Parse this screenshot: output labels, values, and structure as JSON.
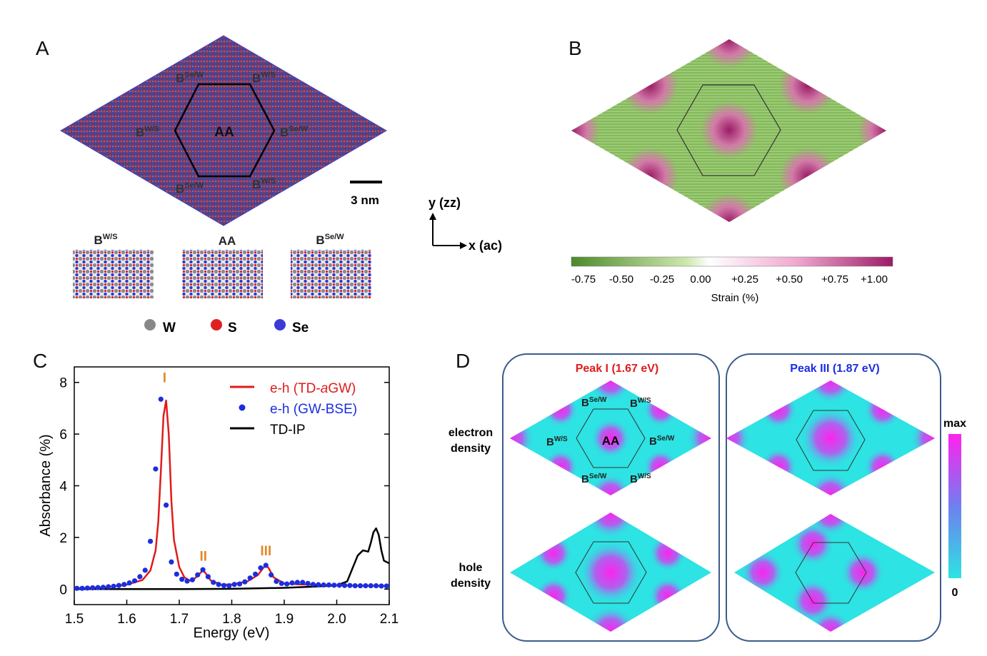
{
  "panels": {
    "a": "A",
    "b": "B",
    "c": "C",
    "d": "D"
  },
  "panel_a": {
    "center_label": "AA",
    "site_base": "B",
    "sup_ws": "W/S",
    "sup_sew": "Se/W",
    "scale_bar": "3 nm",
    "inset_labels": [
      "W/S",
      "AA",
      "Se/W"
    ],
    "legend": [
      {
        "symbol": "W",
        "color": "#888888"
      },
      {
        "symbol": "S",
        "color": "#e02020"
      },
      {
        "symbol": "Se",
        "color": "#3b3bd6"
      }
    ]
  },
  "axes_indicator": {
    "y": "y (zz)",
    "x": "x (ac)"
  },
  "panel_b": {
    "colorbar_ticks": [
      "-0.75",
      "-0.50",
      "-0.25",
      "0.00",
      "+0.25",
      "+0.50",
      "+0.75",
      "+1.00"
    ],
    "colorbar_label": "Strain (%)",
    "colors": {
      "neg": "#4c8a2a",
      "zero": "#ffffff",
      "pos": "#9b1c66"
    }
  },
  "chart_data": {
    "type": "line",
    "xlabel": "Energy (eV)",
    "ylabel": "Absorbance (%)",
    "xlim": [
      1.5,
      2.1
    ],
    "ylim": [
      -0.6,
      8.6
    ],
    "xticks": [
      "1.5",
      "1.6",
      "1.7",
      "1.8",
      "1.9",
      "2.0",
      "2.1"
    ],
    "yticks": [
      "0",
      "2",
      "4",
      "6",
      "8"
    ],
    "legend_position": "top-right",
    "series": [
      {
        "name": "e-h (TD-aGW)",
        "color": "#e01b1b",
        "style": "line",
        "x": [
          1.5,
          1.56,
          1.6,
          1.63,
          1.645,
          1.655,
          1.66,
          1.665,
          1.67,
          1.675,
          1.68,
          1.685,
          1.69,
          1.7,
          1.71,
          1.72,
          1.73,
          1.74,
          1.745,
          1.75,
          1.76,
          1.78,
          1.8,
          1.83,
          1.85,
          1.86,
          1.865,
          1.87,
          1.88,
          1.9,
          1.93,
          1.96,
          2.0,
          2.05,
          2.1
        ],
        "y": [
          0.03,
          0.07,
          0.17,
          0.35,
          0.72,
          1.5,
          2.6,
          4.6,
          6.7,
          7.3,
          6.0,
          3.4,
          1.9,
          0.85,
          0.45,
          0.33,
          0.42,
          0.62,
          0.72,
          0.62,
          0.33,
          0.17,
          0.18,
          0.3,
          0.55,
          0.82,
          0.92,
          0.82,
          0.45,
          0.22,
          0.18,
          0.17,
          0.15,
          0.13,
          0.12
        ]
      },
      {
        "name": "e-h (GW-BSE)",
        "color": "#1b2ee0",
        "style": "dots",
        "x": [
          1.505,
          1.515,
          1.525,
          1.535,
          1.545,
          1.555,
          1.565,
          1.575,
          1.585,
          1.595,
          1.605,
          1.615,
          1.625,
          1.635,
          1.645,
          1.655,
          1.665,
          1.675,
          1.685,
          1.695,
          1.705,
          1.715,
          1.725,
          1.735,
          1.745,
          1.755,
          1.765,
          1.775,
          1.785,
          1.795,
          1.805,
          1.815,
          1.825,
          1.835,
          1.845,
          1.855,
          1.865,
          1.875,
          1.885,
          1.895,
          1.905,
          1.915,
          1.925,
          1.935,
          1.945,
          1.955,
          1.965,
          1.975,
          1.985,
          1.995,
          2.005,
          2.015,
          2.025,
          2.035,
          2.045,
          2.055,
          2.065,
          2.075,
          2.085,
          2.095
        ],
        "y": [
          0.03,
          0.03,
          0.04,
          0.05,
          0.06,
          0.07,
          0.09,
          0.11,
          0.14,
          0.18,
          0.24,
          0.32,
          0.48,
          0.73,
          1.85,
          4.65,
          7.35,
          3.25,
          1.05,
          0.58,
          0.38,
          0.31,
          0.36,
          0.55,
          0.75,
          0.48,
          0.26,
          0.18,
          0.14,
          0.13,
          0.18,
          0.2,
          0.28,
          0.43,
          0.58,
          0.82,
          0.92,
          0.55,
          0.3,
          0.22,
          0.2,
          0.24,
          0.26,
          0.26,
          0.22,
          0.18,
          0.17,
          0.16,
          0.16,
          0.15,
          0.15,
          0.14,
          0.14,
          0.13,
          0.13,
          0.13,
          0.13,
          0.13,
          0.12,
          0.12
        ]
      },
      {
        "name": "TD-IP",
        "color": "#000000",
        "style": "line",
        "x": [
          1.5,
          1.6,
          1.7,
          1.8,
          1.9,
          1.95,
          2.0,
          2.02,
          2.03,
          2.04,
          2.05,
          2.06,
          2.065,
          2.07,
          2.075,
          2.08,
          2.085,
          2.09,
          2.1
        ],
        "y": [
          0.0,
          0.0,
          0.0,
          0.01,
          0.05,
          0.09,
          0.14,
          0.3,
          0.8,
          1.3,
          1.5,
          1.45,
          1.8,
          2.2,
          2.35,
          2.1,
          1.5,
          1.1,
          1.0
        ]
      }
    ],
    "annotations": [
      {
        "text": "I",
        "x": 1.672,
        "y": 8.0,
        "color": "#e08a2a"
      },
      {
        "text": "II",
        "x": 1.746,
        "y": 1.1,
        "color": "#e08a2a"
      },
      {
        "text": "III",
        "x": 1.865,
        "y": 1.3,
        "color": "#e08a2a"
      }
    ]
  },
  "panel_d": {
    "titles": [
      {
        "text": "Peak I (1.67 eV)",
        "color": "#e01b1b"
      },
      {
        "text": "Peak III (1.87 eV)",
        "color": "#1b2ee0"
      }
    ],
    "row_labels": [
      {
        "line1": "electron",
        "line2": "density"
      },
      {
        "line1": "hole",
        "line2": "density"
      }
    ],
    "colorbar_max": "max",
    "colorbar_min": "0",
    "colors": {
      "low": "#2de3e3",
      "high": "#ff22ee"
    }
  }
}
